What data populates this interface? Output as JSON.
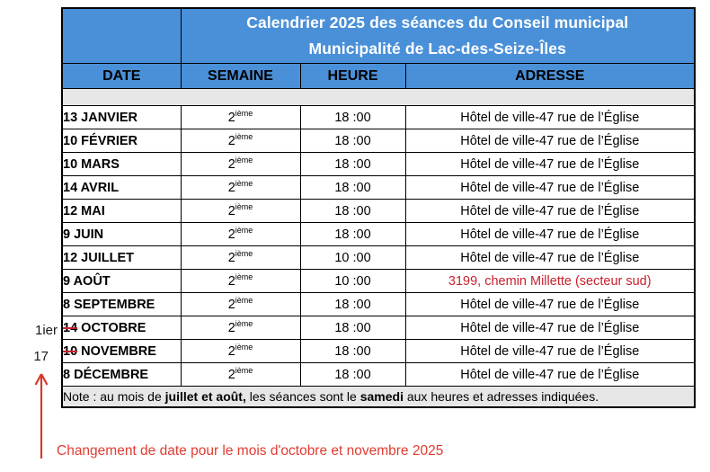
{
  "colors": {
    "blue": "#4A90D8",
    "gray": "#E7E7E7",
    "red": "#C9202C",
    "red_bright": "#E03C31"
  },
  "title": {
    "line1": "Calendrier 2025 des séances du Conseil municipal",
    "line2": "Municipalité de Lac-des-Seize-Îles"
  },
  "columns": [
    "DATE",
    "SEMAINE",
    "HEURE",
    "ADRESSE"
  ],
  "rows": [
    {
      "day": "13",
      "month": "JANVIER",
      "day_struck": false,
      "semaine": {
        "base": "2",
        "sup": "ième"
      },
      "heure": "18 :00",
      "adresse": "Hôtel de ville-47 rue de l’Église",
      "adresse_red": false
    },
    {
      "day": "10",
      "month": "FÉVRIER",
      "day_struck": false,
      "semaine": {
        "base": "2",
        "sup": "ième"
      },
      "heure": "18 :00",
      "adresse": "Hôtel de ville-47 rue de l’Église",
      "adresse_red": false
    },
    {
      "day": "10",
      "month": "MARS",
      "day_struck": false,
      "semaine": {
        "base": "2",
        "sup": "ième"
      },
      "heure": "18 :00",
      "adresse": "Hôtel de ville-47 rue de l’Église",
      "adresse_red": false
    },
    {
      "day": "14",
      "month": "AVRIL",
      "day_struck": false,
      "semaine": {
        "base": "2",
        "sup": "ième"
      },
      "heure": "18 :00",
      "adresse": "Hôtel de ville-47 rue de l’Église",
      "adresse_red": false
    },
    {
      "day": "12",
      "month": "MAI",
      "day_struck": false,
      "semaine": {
        "base": "2",
        "sup": "ième"
      },
      "heure": "18 :00",
      "adresse": "Hôtel de ville-47 rue de l’Église",
      "adresse_red": false
    },
    {
      "day": "9",
      "month": "JUIN",
      "day_struck": false,
      "semaine": {
        "base": "2",
        "sup": "ième"
      },
      "heure": "18 :00",
      "adresse": "Hôtel de ville-47 rue de l’Église",
      "adresse_red": false
    },
    {
      "day": "12",
      "month": "JUILLET",
      "day_struck": false,
      "semaine": {
        "base": "2",
        "sup": "ième"
      },
      "heure": "10 :00",
      "adresse": "Hôtel de ville-47 rue de l’Église",
      "adresse_red": false
    },
    {
      "day": "9",
      "month": "AOÛT",
      "day_struck": false,
      "semaine": {
        "base": "2",
        "sup": "ième"
      },
      "heure": "10 :00",
      "adresse": "3199, chemin Millette (secteur sud)",
      "adresse_red": true
    },
    {
      "day": "8",
      "month": "SEPTEMBRE",
      "day_struck": false,
      "semaine": {
        "base": "2",
        "sup": "ième"
      },
      "heure": "18 :00",
      "adresse": "Hôtel de ville-47 rue de l’Église",
      "adresse_red": false
    },
    {
      "day": "14",
      "month": "OCTOBRE",
      "day_struck": true,
      "semaine": {
        "base": "2",
        "sup": "ième"
      },
      "heure": "18 :00",
      "adresse": "Hôtel de ville-47 rue de l’Église",
      "adresse_red": false
    },
    {
      "day": "10",
      "month": "NOVEMBRE",
      "day_struck": true,
      "semaine": {
        "base": "2",
        "sup": "ième"
      },
      "heure": "18 :00",
      "adresse": "Hôtel de ville-47 rue de l’Église",
      "adresse_red": false
    },
    {
      "day": "8",
      "month": "DÉCEMBRE",
      "day_struck": false,
      "semaine": {
        "base": "2",
        "sup": "ième"
      },
      "heure": "18 :00",
      "adresse": "Hôtel de ville-47 rue de l’Église",
      "adresse_red": false
    }
  ],
  "note": {
    "parts": [
      {
        "text": "Note : au mois de ",
        "bold": false
      },
      {
        "text": "juillet et août,",
        "bold": true
      },
      {
        "text": " les séances sont le ",
        "bold": false
      },
      {
        "text": "samedi",
        "bold": true
      },
      {
        "text": " aux heures et adresses indiquées.",
        "bold": false
      }
    ]
  },
  "annotations": {
    "october_new_day": "1ier",
    "november_new_day": "17",
    "change_note": "Changement de date pour le mois d'octobre et novembre 2025"
  }
}
